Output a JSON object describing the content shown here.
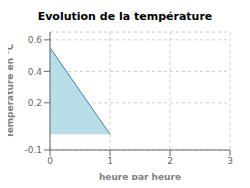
{
  "chart_data": {
    "type": "area",
    "title": "Evolution de la température",
    "xlabel": "heure par heure",
    "ylabel": "Température en °C",
    "x": [
      0,
      1
    ],
    "values": [
      0.55,
      0.0
    ],
    "baseline": 0.0,
    "color": "#b8dfe8",
    "xlim": [
      0,
      3
    ],
    "ylim": [
      -0.1,
      0.65
    ],
    "xticks": [
      0,
      1,
      2,
      3
    ],
    "yticks": [
      -0.1,
      0.2,
      0.4,
      0.6
    ],
    "grid": true
  }
}
